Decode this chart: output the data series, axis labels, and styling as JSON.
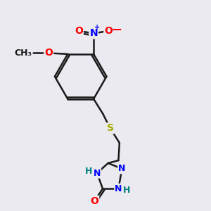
{
  "background_color": "#eaeaf0",
  "bond_color": "#1a1a1a",
  "atom_colors": {
    "O": "#ff0000",
    "N": "#0000ff",
    "S": "#aaaa00",
    "C": "#1a1a1a",
    "H": "#008080"
  },
  "figsize": [
    3.0,
    3.0
  ],
  "dpi": 100
}
